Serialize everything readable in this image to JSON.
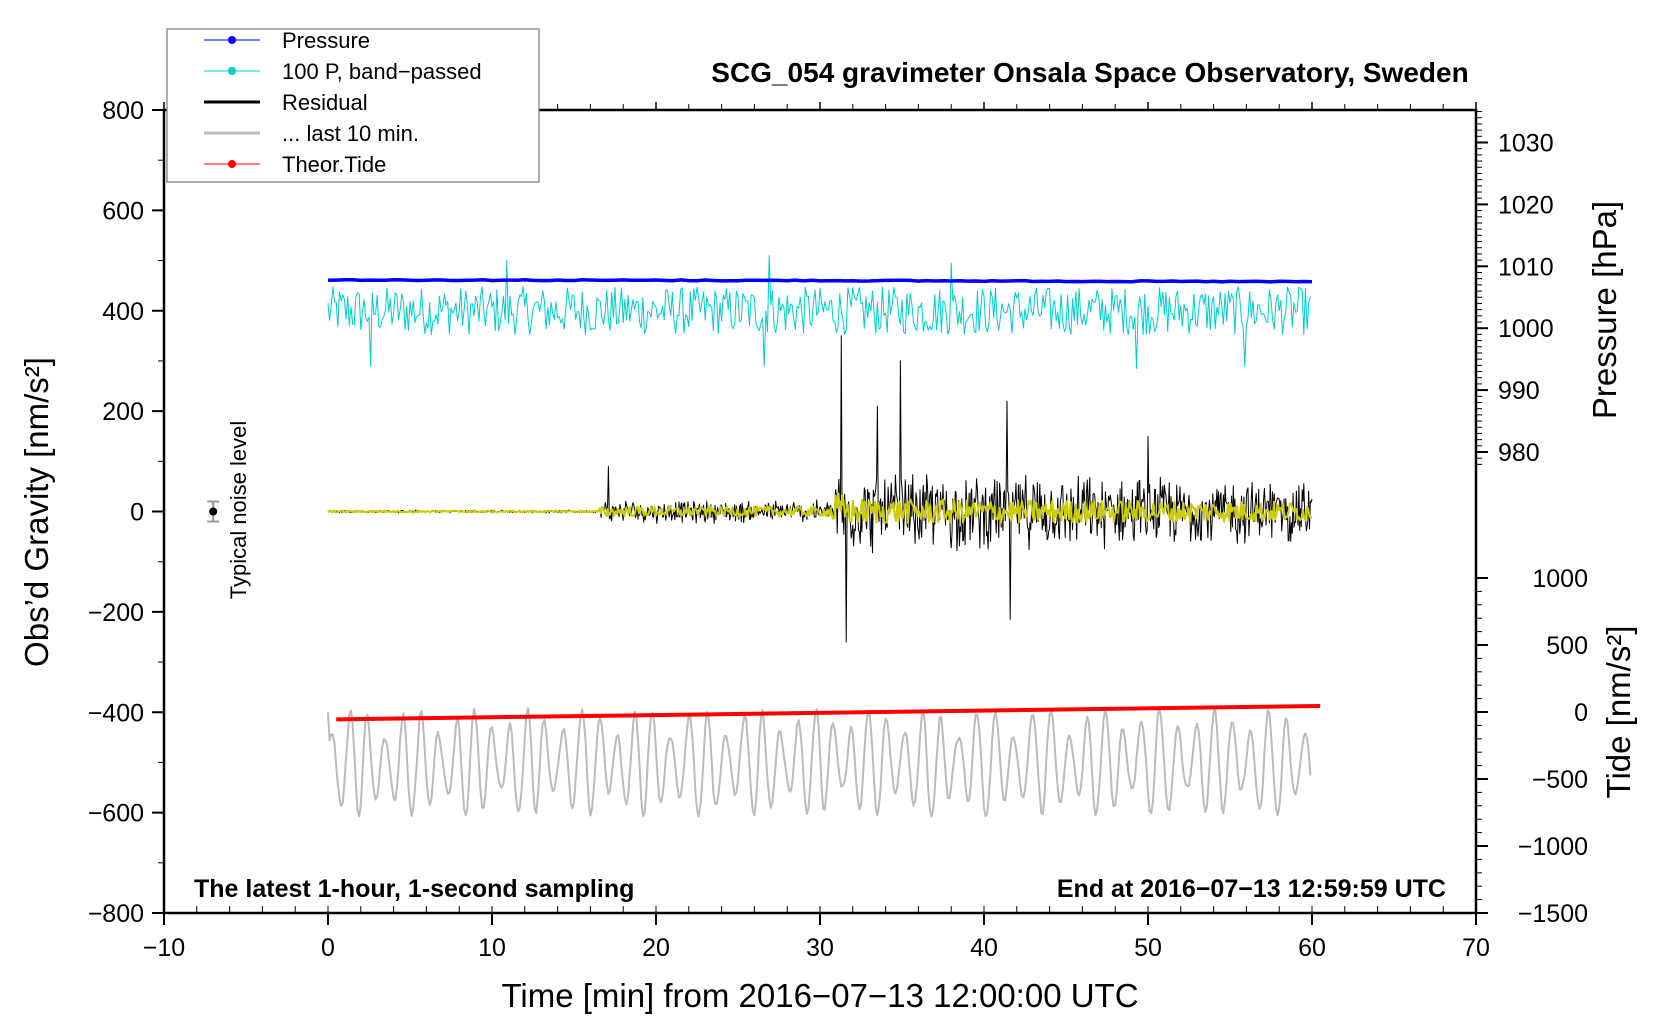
{
  "chart_data": {
    "type": "line",
    "title": "SCG_054 gravimeter Onsala Space Observatory, Sweden",
    "xlabel": "Time [min] from 2016−07−13 12:00:00 UTC",
    "ylabel": "Obs’d Gravity [nm/s²]",
    "ylabel_right_top": "Pressure [hPa]",
    "ylabel_right_bottom": "Tide [nm/s²]",
    "xlim": [
      -10,
      70
    ],
    "ylim": [
      -800,
      800
    ],
    "pressure_lim": [
      980,
      1030
    ],
    "tide_lim": [
      -1500,
      1000
    ],
    "x_ticks": [
      "−10",
      "0",
      "10",
      "20",
      "30",
      "40",
      "50",
      "60",
      "70"
    ],
    "x_tick_values": [
      -10,
      0,
      10,
      20,
      30,
      40,
      50,
      60,
      70
    ],
    "y_ticks": [
      "800",
      "600",
      "400",
      "200",
      "0",
      "−200",
      "−400",
      "−600",
      "−800"
    ],
    "y_tick_values": [
      800,
      600,
      400,
      200,
      0,
      -200,
      -400,
      -600,
      -800
    ],
    "pressure_ticks": [
      "1030",
      "1020",
      "1010",
      "1000",
      "990",
      "980"
    ],
    "pressure_tick_values": [
      1030,
      1020,
      1010,
      1000,
      990,
      980
    ],
    "tide_ticks": [
      "1000",
      "500",
      "0",
      "−500",
      "−1000",
      "−1500"
    ],
    "tide_tick_values": [
      1000,
      500,
      0,
      -500,
      -1000,
      -1500
    ],
    "annotation_left": "The latest 1-hour, 1-second sampling",
    "annotation_right": "End at 2016−07−13 12:59:59 UTC",
    "noise_label": "Typical noise level",
    "noise_level": {
      "x": -7,
      "y": 0,
      "error": 20
    },
    "legend": {
      "placement": "top-left",
      "entries": [
        {
          "label": "Pressure",
          "color": "#0000ff",
          "marker": true
        },
        {
          "label": "100 P, band−passed",
          "color": "#00cccc",
          "marker": true
        },
        {
          "label": "Residual",
          "color": "#000000",
          "marker": false
        },
        {
          "label": "... last 10 min.",
          "color": "#bbbbbb",
          "marker": false
        },
        {
          "label": "Theor.Tide",
          "color": "#ff0000",
          "marker": true
        }
      ]
    },
    "series": [
      {
        "name": "Pressure",
        "axis": "pressure",
        "color": "#0000ff",
        "x": [
          0,
          30,
          60
        ],
        "values": [
          1007.8,
          1007.7,
          1007.5
        ]
      },
      {
        "name": "100 P, band-passed",
        "axis": "left",
        "color": "#00cccc",
        "x_range": [
          0,
          60
        ],
        "center": 400,
        "amplitude": 40,
        "peaks": [
          [
            10.9,
            500
          ],
          [
            26.9,
            510
          ],
          [
            38.0,
            495
          ],
          [
            2.6,
            290
          ],
          [
            26.6,
            290
          ],
          [
            49.3,
            285
          ],
          [
            55.9,
            290
          ]
        ]
      },
      {
        "name": "Residual",
        "axis": "left",
        "color": "#000000",
        "x_range": [
          0,
          60
        ],
        "envelope": [
          [
            0,
            3
          ],
          [
            16.5,
            3
          ],
          [
            16.6,
            25
          ],
          [
            30.5,
            25
          ],
          [
            31,
            90
          ],
          [
            60,
            70
          ]
        ],
        "peaks": [
          [
            17.1,
            90
          ],
          [
            31.3,
            350
          ],
          [
            31.6,
            -260
          ],
          [
            34.9,
            300
          ],
          [
            41.4,
            220
          ],
          [
            41.6,
            -215
          ],
          [
            33.5,
            210
          ],
          [
            50,
            150
          ]
        ]
      },
      {
        "name": "Residual filtered",
        "axis": "left",
        "color": "#cccc00",
        "x_range": [
          0,
          60
        ],
        "envelope": [
          [
            0,
            2
          ],
          [
            16.5,
            2
          ],
          [
            16.6,
            10
          ],
          [
            30.5,
            10
          ],
          [
            31,
            40
          ],
          [
            32,
            25
          ],
          [
            60,
            20
          ]
        ]
      },
      {
        "name": "... last 10 min.",
        "axis": "left",
        "color": "#bbbbbb",
        "x_range": [
          0,
          60
        ],
        "center": -500,
        "amplitude": 90,
        "min": -635,
        "max": -378
      },
      {
        "name": "Theor.Tide",
        "axis": "tide",
        "color": "#ff0000",
        "x": [
          0.5,
          60.5
        ],
        "values": [
          -55,
          45
        ]
      }
    ]
  }
}
